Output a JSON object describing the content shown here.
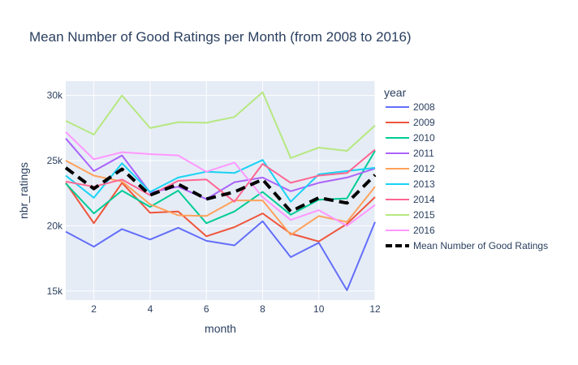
{
  "chart_data": {
    "type": "line",
    "title": "Mean Number of Good Ratings per Month (from 2008 to 2016)",
    "xlabel": "month",
    "ylabel": "nbr_ratings",
    "x": [
      1,
      2,
      3,
      4,
      5,
      6,
      7,
      8,
      9,
      10,
      11,
      12
    ],
    "xlim": [
      1,
      12
    ],
    "ylim": [
      14300,
      31100
    ],
    "x_ticks": [
      2,
      4,
      6,
      8,
      10,
      12
    ],
    "x_tick_labels": [
      "2",
      "4",
      "6",
      "8",
      "10",
      "12"
    ],
    "y_ticks": [
      15000,
      20000,
      25000,
      30000
    ],
    "y_tick_labels": [
      "15k",
      "20k",
      "25k",
      "30k"
    ],
    "grid": true,
    "legend_title": "year",
    "legend_position": "right",
    "series": [
      {
        "name": "2008",
        "color": "#636efa",
        "values": [
          19550,
          18400,
          19750,
          18950,
          19850,
          18850,
          18500,
          20350,
          17600,
          18700,
          15050,
          20300
        ]
      },
      {
        "name": "2009",
        "color": "#ef553b",
        "values": [
          23300,
          20200,
          23300,
          21000,
          21100,
          19200,
          19900,
          20950,
          19400,
          18800,
          20150,
          22200
        ]
      },
      {
        "name": "2010",
        "color": "#00cc96",
        "values": [
          23250,
          20950,
          22700,
          21450,
          22700,
          20200,
          21100,
          22600,
          20850,
          22000,
          22100,
          25750
        ]
      },
      {
        "name": "2011",
        "color": "#ab63fa",
        "values": [
          26700,
          24200,
          25400,
          22550,
          23000,
          22050,
          23350,
          23700,
          22650,
          23300,
          23700,
          24400
        ]
      },
      {
        "name": "2012",
        "color": "#ffa15a",
        "values": [
          25000,
          23850,
          23400,
          21650,
          20800,
          20750,
          21950,
          21950,
          19300,
          20750,
          20300,
          23000
        ]
      },
      {
        "name": "2013",
        "color": "#19d3f3",
        "values": [
          23850,
          22150,
          24800,
          22600,
          23700,
          24150,
          24050,
          25050,
          21850,
          23950,
          24200,
          24450
        ]
      },
      {
        "name": "2014",
        "color": "#ff6692",
        "values": [
          23400,
          23000,
          23550,
          22350,
          23450,
          23550,
          21850,
          24750,
          23300,
          23850,
          24050,
          25850
        ]
      },
      {
        "name": "2015",
        "color": "#b6e880",
        "values": [
          28050,
          27000,
          30000,
          27500,
          27950,
          27900,
          28350,
          30250,
          25200,
          26000,
          25750,
          27700
        ]
      },
      {
        "name": "2016",
        "color": "#ff97ff",
        "values": [
          27200,
          25100,
          25650,
          25500,
          25400,
          24150,
          24850,
          22200,
          20450,
          21200,
          20000,
          21600
        ]
      },
      {
        "name": "Mean Number of Good Ratings",
        "color": "#000000",
        "dash": true,
        "values": [
          24450,
          22850,
          24350,
          22350,
          23200,
          22050,
          22600,
          23550,
          21100,
          22150,
          21750,
          23900
        ]
      }
    ]
  }
}
